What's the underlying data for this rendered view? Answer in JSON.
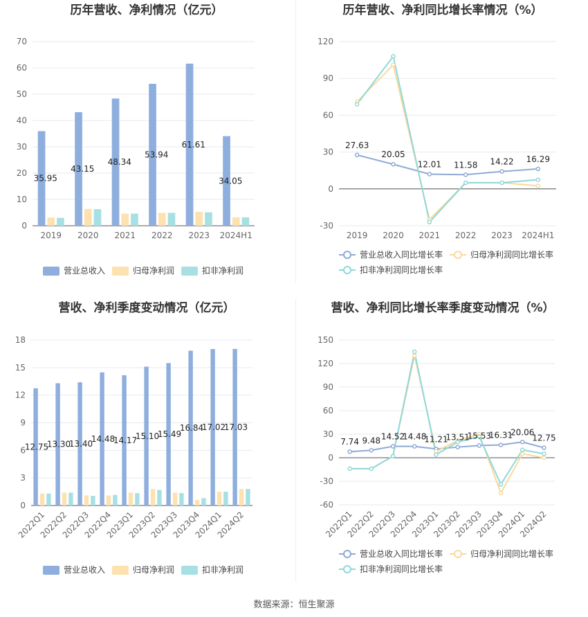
{
  "source_label": "数据来源：恒生聚源",
  "colors": {
    "revenue": "#8eaedd",
    "net_profit": "#fde2b0",
    "deducted_profit": "#a7e0e3",
    "revenue_line": "#8eaad6",
    "net_profit_line": "#fbd99a",
    "deducted_profit_line": "#8ed8da",
    "grid": "#e6e9f0",
    "axis_text": "#666666"
  },
  "chart_data": [
    {
      "type": "bar",
      "title": "历年营收、净利情况（亿元）",
      "categories": [
        "2019",
        "2020",
        "2021",
        "2022",
        "2023",
        "2024H1"
      ],
      "ylim": [
        0,
        70
      ],
      "yticks": [
        0,
        10,
        20,
        30,
        40,
        50,
        60,
        70
      ],
      "series": [
        {
          "name": "营业总收入",
          "values": [
            35.95,
            43.15,
            48.34,
            53.94,
            61.61,
            34.05
          ],
          "labels": [
            "35.95",
            "43.15",
            "48.34",
            "53.94",
            "61.61",
            "34.05"
          ]
        },
        {
          "name": "归母净利润",
          "values": [
            3.1,
            6.4,
            4.6,
            4.9,
            5.3,
            3.2
          ]
        },
        {
          "name": "扣非净利润",
          "values": [
            3.0,
            6.3,
            4.6,
            4.9,
            5.1,
            3.2
          ]
        }
      ],
      "legend_position": "bottom"
    },
    {
      "type": "line",
      "title": "历年营收、净利同比增长率情况（%）",
      "categories": [
        "2019",
        "2020",
        "2021",
        "2022",
        "2023",
        "2024H1"
      ],
      "ylim": [
        -30,
        120
      ],
      "yticks": [
        -30,
        0,
        30,
        60,
        90,
        120
      ],
      "series": [
        {
          "name": "营业总收入同比增长率",
          "values": [
            27.63,
            20.05,
            12.01,
            11.58,
            14.22,
            16.29
          ],
          "labels": [
            "27.63",
            "20.05",
            "12.01",
            "11.58",
            "14.22",
            "16.29"
          ]
        },
        {
          "name": "归母净利润同比增长率",
          "values": [
            71,
            101,
            -25,
            5,
            5,
            2.5
          ]
        },
        {
          "name": "扣非净利润同比增长率",
          "values": [
            69,
            108,
            -27,
            5,
            5,
            7.5
          ]
        }
      ],
      "legend_position": "bottom"
    },
    {
      "type": "bar",
      "title": "营收、净利季度变动情况（亿元）",
      "categories": [
        "2022Q1",
        "2022Q2",
        "2022Q3",
        "2022Q4",
        "2023Q1",
        "2023Q2",
        "2023Q3",
        "2023Q4",
        "2024Q1",
        "2024Q2"
      ],
      "ylim": [
        0,
        18
      ],
      "yticks": [
        0,
        3,
        6,
        9,
        12,
        15,
        18
      ],
      "series": [
        {
          "name": "营业总收入",
          "values": [
            12.75,
            13.3,
            13.4,
            14.48,
            14.17,
            15.1,
            15.49,
            16.84,
            17.02,
            17.03
          ],
          "labels": [
            "12.75",
            "13.30",
            "13.40",
            "14.48",
            "14.17",
            "15.10",
            "15.49",
            "16.84",
            "17.02",
            "17.03"
          ]
        },
        {
          "name": "归母净利润",
          "values": [
            1.3,
            1.4,
            1.1,
            1.1,
            1.4,
            1.8,
            1.4,
            0.6,
            1.5,
            1.8
          ]
        },
        {
          "name": "扣非净利润",
          "values": [
            1.3,
            1.4,
            1.05,
            1.15,
            1.35,
            1.7,
            1.35,
            0.8,
            1.5,
            1.8
          ]
        }
      ],
      "legend_position": "bottom"
    },
    {
      "type": "line",
      "title": "营收、净利同比增长率季度变动情况（%）",
      "categories": [
        "2022Q1",
        "2022Q2",
        "2022Q3",
        "2022Q4",
        "2023Q1",
        "2023Q2",
        "2023Q3",
        "2023Q4",
        "2024Q1",
        "2024Q2"
      ],
      "ylim": [
        -60,
        150
      ],
      "yticks": [
        -60,
        -30,
        0,
        30,
        60,
        90,
        120,
        150
      ],
      "series": [
        {
          "name": "营业总收入同比增长率",
          "values": [
            7.74,
            9.48,
            14.52,
            14.48,
            11.21,
            13.51,
            15.53,
            16.31,
            20.06,
            12.75
          ],
          "labels": [
            "7.74",
            "9.48",
            "14.52",
            "14.48",
            "11.21",
            "13.51",
            "15.53",
            "16.31",
            "20.06",
            "12.75"
          ]
        },
        {
          "name": "归母净利润同比增长率",
          "values": [
            -14,
            -14,
            2,
            130,
            8,
            22,
            30,
            -45,
            5,
            0
          ]
        },
        {
          "name": "扣非净利润同比增长率",
          "values": [
            -14,
            -14,
            2,
            135,
            4,
            20,
            27,
            -34,
            10,
            5
          ]
        }
      ],
      "legend_position": "bottom"
    }
  ]
}
